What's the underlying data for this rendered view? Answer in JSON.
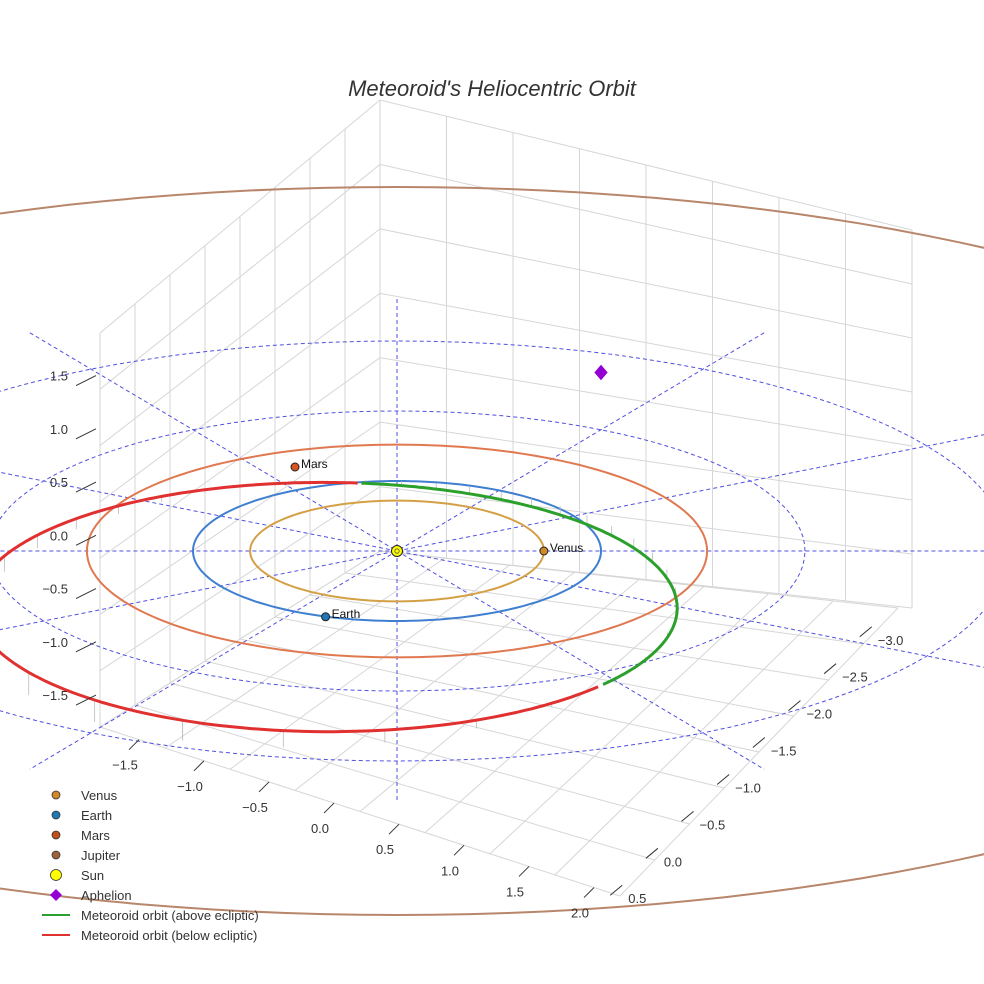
{
  "chart_data": {
    "type": "scatter3d",
    "title": "Meteoroid's Heliocentric Orbit",
    "axes": {
      "x": {
        "ticks": [
          -1.5,
          -1.0,
          -0.5,
          0.0,
          0.5,
          1.0,
          1.5,
          2.0
        ],
        "tick_labels": [
          "−1.5",
          "−1.0",
          "−0.5",
          "0.0",
          "0.5",
          "1.0",
          "1.5",
          "2.0"
        ],
        "range": [
          -1.8,
          2.2
        ]
      },
      "y": {
        "ticks": [
          -3.0,
          -2.5,
          -2.0,
          -1.5,
          -1.0,
          -0.5,
          0.0,
          0.5
        ],
        "tick_labels": [
          "−3.0",
          "−2.5",
          "−2.0",
          "−1.5",
          "−1.0",
          "−0.5",
          "0.0",
          "0.5"
        ],
        "range": [
          -3.2,
          0.7
        ]
      },
      "z": {
        "ticks": [
          -1.5,
          -1.0,
          -0.5,
          0.0,
          0.5,
          1.0,
          1.5
        ],
        "tick_labels": [
          "−1.5",
          "−1.0",
          "−0.5",
          "0.0",
          "0.5",
          "1.0",
          "1.5"
        ],
        "range": [
          -1.8,
          1.9
        ]
      },
      "grid": true
    },
    "planet_orbits": [
      {
        "name": "Venus",
        "radius_au": 0.72,
        "color": "#d4a045"
      },
      {
        "name": "Earth",
        "radius_au": 1.0,
        "color": "#3f7fd0"
      },
      {
        "name": "Mars",
        "radius_au": 1.52,
        "color": "#e07850"
      },
      {
        "name": "Jupiter",
        "radius_au": 5.2,
        "color": "#b8866a"
      }
    ],
    "points": [
      {
        "name": "Venus",
        "label": "Venus",
        "x": 0.72,
        "y": 0.0,
        "z": 0.0,
        "color": "#d08a2a"
      },
      {
        "name": "Earth",
        "label": "Earth",
        "x": -0.35,
        "y": -0.94,
        "z": 0.0,
        "color": "#1f77b4"
      },
      {
        "name": "Mars",
        "label": "Mars",
        "x": -0.5,
        "y": 1.2,
        "z": 0.0,
        "color": "#d9541e"
      },
      {
        "name": "Sun",
        "label": "",
        "x": 0.0,
        "y": 0.0,
        "z": 0.0,
        "color": "#ffff00"
      }
    ],
    "aphelion": {
      "x": 1.0,
      "y": 2.55,
      "z": 0.0,
      "color": "#9400d3"
    },
    "meteoroid_orbit": {
      "perihelion_au": 0.98,
      "aphelion_au": 2.9,
      "segments": [
        {
          "name": "Meteoroid orbit (above ecliptic)",
          "color": "#2ca02c"
        },
        {
          "name": "Meteoroid orbit (below ecliptic)",
          "color": "#e03030"
        }
      ]
    },
    "reference_grid": {
      "circles_au": [
        1.0,
        2.0,
        3.0
      ],
      "color": "#5050e0",
      "style": "dashed"
    },
    "legend": {
      "position": "bottom-left",
      "items": [
        {
          "label": "Venus",
          "type": "marker",
          "color": "#d08a2a"
        },
        {
          "label": "Earth",
          "type": "marker",
          "color": "#1f77b4"
        },
        {
          "label": "Mars",
          "type": "marker",
          "color": "#c0501a"
        },
        {
          "label": "Jupiter",
          "type": "marker",
          "color": "#a0623a"
        },
        {
          "label": "Sun",
          "type": "sun",
          "color": "#ffff00"
        },
        {
          "label": "Aphelion",
          "type": "diamond",
          "color": "#9400d3"
        },
        {
          "label": "Meteoroid orbit (above ecliptic)",
          "type": "line",
          "color": "#2ca02c"
        },
        {
          "label": "Meteoroid orbit (below ecliptic)",
          "type": "line",
          "color": "#e03030"
        }
      ]
    }
  }
}
